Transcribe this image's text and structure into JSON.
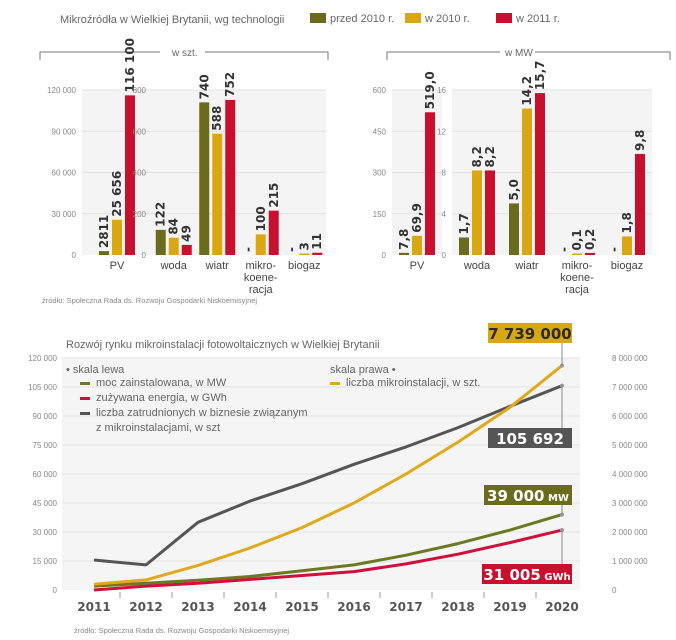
{
  "chart_data": [
    {
      "type": "bar",
      "title": "Mikroźródła w Wielkiej Brytanii, wg technologii",
      "group_label": "w szt.",
      "unit": "szt.",
      "legend": [
        "przed 2010 r.",
        "w 2010 r.",
        "w 2011 r."
      ],
      "legend_placement": "top",
      "colors": [
        "#6b6b1e",
        "#d9a712",
        "#c8102e"
      ],
      "panels": [
        {
          "name": "szt-pv",
          "ylim": [
            0,
            120000
          ],
          "yticks": [
            0,
            30000,
            60000,
            90000,
            120000
          ],
          "ytick_labels": [
            "0",
            "30 000",
            "60 000",
            "90 000",
            "120 000"
          ],
          "categories": [
            "PV"
          ],
          "series": [
            {
              "name": "przed 2010 r.",
              "values": [
                2811
              ],
              "labels": [
                "2811"
              ]
            },
            {
              "name": "w 2010 r.",
              "values": [
                25656
              ],
              "labels": [
                "25 656"
              ]
            },
            {
              "name": "w 2011 r.",
              "values": [
                116100
              ],
              "labels": [
                "116 100"
              ]
            }
          ]
        },
        {
          "name": "szt-other",
          "ylim": [
            0,
            800
          ],
          "yticks": [
            0,
            200,
            400,
            600,
            800
          ],
          "ytick_labels": [
            "0",
            "200",
            "400",
            "600",
            "800"
          ],
          "categories": [
            "woda",
            "wiatr",
            "mikro-koene-racja",
            "biogaz"
          ],
          "category_lines": [
            [
              "woda"
            ],
            [
              "wiatr"
            ],
            [
              "mikro-",
              "koene-",
              "racja"
            ],
            [
              "biogaz"
            ]
          ],
          "series": [
            {
              "name": "przed 2010 r.",
              "values": [
                122,
                740,
                0,
                0
              ],
              "labels": [
                "122",
                "740",
                "-",
                "-"
              ]
            },
            {
              "name": "w 2010 r.",
              "values": [
                84,
                588,
                100,
                3
              ],
              "labels": [
                "84",
                "588",
                "100",
                "3"
              ]
            },
            {
              "name": "w 2011 r.",
              "values": [
                49,
                752,
                215,
                11
              ],
              "labels": [
                "49",
                "752",
                "215",
                "11"
              ]
            }
          ]
        }
      ]
    },
    {
      "type": "bar",
      "group_label": "w MW",
      "unit": "MW",
      "legend": [
        "przed 2010 r.",
        "w 2010 r.",
        "w 2011 r."
      ],
      "colors": [
        "#6b6b1e",
        "#d9a712",
        "#c8102e"
      ],
      "panels": [
        {
          "name": "mw-pv",
          "ylim": [
            0,
            600
          ],
          "yticks": [
            0,
            150,
            300,
            450,
            600
          ],
          "ytick_labels": [
            "0",
            "150",
            "300",
            "450",
            "600"
          ],
          "categories": [
            "PV"
          ],
          "series": [
            {
              "name": "przed 2010 r.",
              "values": [
                7.8
              ],
              "labels": [
                "7,8"
              ]
            },
            {
              "name": "w 2010 r.",
              "values": [
                69.9
              ],
              "labels": [
                "69,9"
              ]
            },
            {
              "name": "w 2011 r.",
              "values": [
                519.0
              ],
              "labels": [
                "519,0"
              ]
            }
          ]
        },
        {
          "name": "mw-other",
          "ylim": [
            0,
            16
          ],
          "yticks": [
            0,
            4,
            8,
            12,
            16
          ],
          "ytick_labels": [
            "0",
            "4",
            "8",
            "12",
            "16"
          ],
          "categories": [
            "woda",
            "wiatr",
            "mikro-koene-racja",
            "biogaz"
          ],
          "category_lines": [
            [
              "woda"
            ],
            [
              "wiatr"
            ],
            [
              "mikro-",
              "koene-",
              "racja"
            ],
            [
              "biogaz"
            ]
          ],
          "series": [
            {
              "name": "przed 2010 r.",
              "values": [
                1.7,
                5.0,
                0,
                0
              ],
              "labels": [
                "1,7",
                "5,0",
                "-",
                "-"
              ]
            },
            {
              "name": "w 2010 r.",
              "values": [
                8.2,
                14.2,
                0.1,
                1.8
              ],
              "labels": [
                "8,2",
                "14,2",
                "0,1",
                "1,8"
              ]
            },
            {
              "name": "w 2011 r.",
              "values": [
                8.2,
                15.7,
                0.2,
                9.8
              ],
              "labels": [
                "8,2",
                "15,7",
                "0,2",
                "9,8"
              ]
            }
          ]
        }
      ]
    },
    {
      "type": "line",
      "title": "Rozwój rynku mikroinstalacji fotowoltaicznych w Wielkiej Brytanii",
      "x": [
        "2011",
        "2012",
        "2013",
        "2014",
        "2015",
        "2016",
        "2017",
        "2018",
        "2019",
        "2020"
      ],
      "ylim_left": [
        0,
        120000
      ],
      "yticks_left": [
        "0",
        "15 000",
        "30 000",
        "45 000",
        "60 000",
        "75 000",
        "90 000",
        "105 000",
        "120 000"
      ],
      "ylim_right": [
        0,
        8000000
      ],
      "yticks_right": [
        "0",
        "1 000 000",
        "2 000 000",
        "3 000 000",
        "4 000 000",
        "5 000 000",
        "6 000 000",
        "7 000 000",
        "8 000 000"
      ],
      "grid": true,
      "legend_left_title": "skala lewa",
      "legend_right_title": "skala prawa",
      "series": [
        {
          "name": "moc zainstalowana, w MW",
          "axis": "left",
          "color": "#6b7a22",
          "values": [
            2000,
            3500,
            5000,
            7000,
            10000,
            13000,
            18000,
            24000,
            31000,
            39000
          ],
          "end_label": "39 000",
          "end_unit": "MW"
        },
        {
          "name": "zużywana energia, w GWh",
          "axis": "left",
          "color": "#d0103a",
          "values": [
            0,
            2000,
            3500,
            5500,
            7500,
            9500,
            13500,
            18500,
            24500,
            31005
          ],
          "end_label": "31 005",
          "end_unit": "GWh"
        },
        {
          "name": "liczba zatrudnionych w biznesie związanym z mikroinstalacjami, w szt",
          "axis": "left",
          "color": "#555555",
          "legend_lines": [
            "liczba zatrudnionych w biznesie związanym",
            "z mikroinstalacjami, w szt"
          ],
          "values": [
            15500,
            13000,
            35000,
            46000,
            55000,
            65000,
            74000,
            84000,
            95000,
            105692
          ],
          "end_label": "105 692",
          "end_unit": ""
        },
        {
          "name": "liczba mikroinstalacji, w szt.",
          "axis": "right",
          "color": "#e0a81a",
          "values": [
            200000,
            350000,
            850000,
            1450000,
            2150000,
            3000000,
            4000000,
            5100000,
            6300000,
            7739000
          ],
          "end_label": "7 739 000",
          "end_unit": ""
        }
      ]
    }
  ],
  "sources": {
    "top": "źródło: Społeczna Rada ds. Rozwoju Gospodarki Niskoemisyjnej",
    "bottom": "źródło: Społeczna Rada ds. Rozwoju Gospodarki Niskoemisyjnej"
  }
}
